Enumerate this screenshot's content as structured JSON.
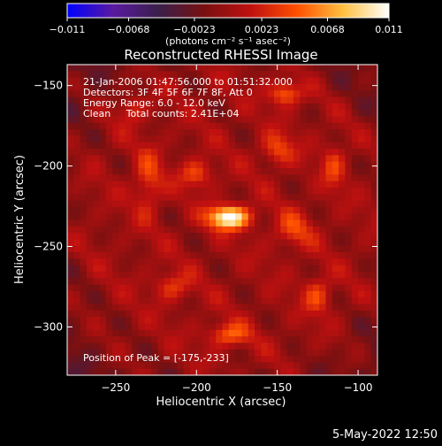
{
  "chart_data": {
    "type": "heatmap",
    "title": "Reconstructed RHESSI Image",
    "xlabel": "Heliocentric X (arcsec)",
    "ylabel": "Heliocentric Y (arcsec)",
    "xlim": [
      -280,
      -88
    ],
    "ylim": [
      -330,
      -137
    ],
    "x_ticks": [
      -250,
      -200,
      -150,
      -100
    ],
    "x_tick_labels": [
      "−250",
      "−200",
      "−150",
      "−100"
    ],
    "y_ticks": [
      -300,
      -250,
      -200,
      -150
    ],
    "y_tick_labels": [
      "−300",
      "−250",
      "−200",
      "−150"
    ],
    "info_lines": [
      "21-Jan-2006 01:47:56.000 to 01:51:32.000",
      "Detectors: 3F 4F 5F 6F 7F 8F, Att 0",
      "Energy Range: 6.0 - 12.0 keV",
      "Clean     Total counts: 2.41E+04"
    ],
    "peak_label": "Position of Peak = [-175,-233]",
    "peak_position": [
      -175,
      -233
    ],
    "colorbar": {
      "range": [
        -0.011,
        0.011
      ],
      "ticks": [
        -0.011,
        -0.0068,
        -0.0023,
        0.0023,
        0.0068,
        0.011
      ],
      "tick_labels": [
        "−0.011",
        "−0.0068",
        "−0.0023",
        "0.0023",
        "0.0068",
        "0.011"
      ],
      "units_label": "(photons cm⁻² s⁻¹ asec⁻²)"
    },
    "sources": [
      {
        "x": -180,
        "y": -232,
        "amp": 0.0115,
        "sx": 9,
        "sy": 5
      },
      {
        "x": -200,
        "y": -205,
        "amp": 0.0042,
        "sx": 7,
        "sy": 6
      },
      {
        "x": -230,
        "y": -210,
        "amp": 0.0038,
        "sx": 6,
        "sy": 14
      },
      {
        "x": -150,
        "y": -190,
        "amp": 0.004,
        "sx": 7,
        "sy": 7
      },
      {
        "x": -140,
        "y": -240,
        "amp": 0.0036,
        "sx": 8,
        "sy": 8
      },
      {
        "x": -145,
        "y": -155,
        "amp": 0.0055,
        "sx": 7,
        "sy": 5
      },
      {
        "x": -180,
        "y": -305,
        "amp": 0.005,
        "sx": 9,
        "sy": 5
      },
      {
        "x": -215,
        "y": -275,
        "amp": 0.0036,
        "sx": 8,
        "sy": 6
      },
      {
        "x": -125,
        "y": -280,
        "amp": 0.004,
        "sx": 6,
        "sy": 8
      },
      {
        "x": -240,
        "y": -165,
        "amp": 0.003,
        "sx": 6,
        "sy": 6
      },
      {
        "x": -115,
        "y": -200,
        "amp": 0.0034,
        "sx": 5,
        "sy": 10
      }
    ],
    "colors": {
      "background": "#000000",
      "text": "#ffffff",
      "colormap": [
        "#0000ff",
        "#5a1aa0",
        "#3a1f4a",
        "#7a1010",
        "#c01010",
        "#ff5000",
        "#ffc040",
        "#ffffff"
      ]
    }
  },
  "footer": {
    "date_stamp": "5-May-2022 12:50"
  }
}
